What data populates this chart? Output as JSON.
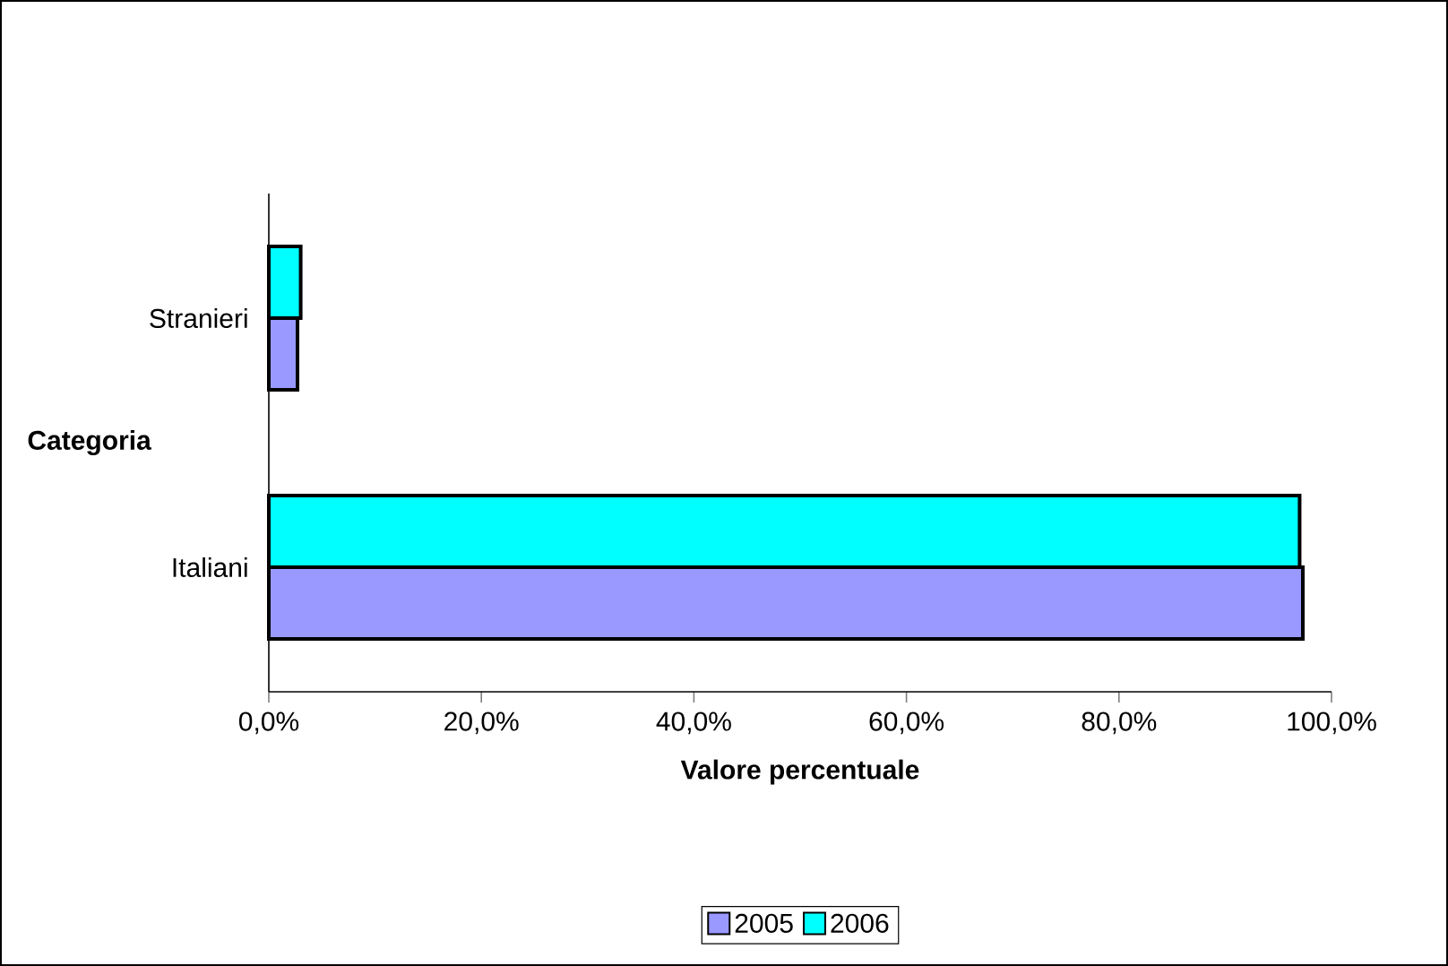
{
  "chart_data": {
    "type": "bar",
    "orientation": "horizontal",
    "xlabel": "Valore percentuale",
    "ylabel": "Categoria",
    "categories": [
      "Stranieri",
      "Italiani"
    ],
    "series": [
      {
        "name": "2005",
        "color": "#9999ff",
        "values": [
          2.7,
          97.3
        ]
      },
      {
        "name": "2006",
        "color": "#00ffff",
        "values": [
          3.0,
          97.0
        ]
      }
    ],
    "xlim": [
      0,
      100
    ],
    "xticks": [
      {
        "value": 0,
        "label": "0,0%"
      },
      {
        "value": 20,
        "label": "20,0%"
      },
      {
        "value": 40,
        "label": "40,0%"
      },
      {
        "value": 60,
        "label": "60,0%"
      },
      {
        "value": 80,
        "label": "80,0%"
      },
      {
        "value": 100,
        "label": "100,0%"
      }
    ],
    "grid": false,
    "legend": "bottom"
  }
}
